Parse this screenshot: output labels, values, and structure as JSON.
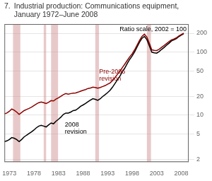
{
  "chart_data": {
    "type": "line",
    "log": "y",
    "title": [
      "7.",
      "Industrial production: Communications equipment,\nJanuary 1972–June 2008"
    ],
    "x": [
      1972.0,
      1972.5,
      1973.0,
      1973.5,
      1974.0,
      1974.5,
      1975.0,
      1975.5,
      1976.0,
      1976.5,
      1977.0,
      1977.5,
      1978.0,
      1978.5,
      1979.0,
      1979.5,
      1980.0,
      1980.5,
      1981.0,
      1981.5,
      1982.0,
      1982.5,
      1983.0,
      1983.5,
      1984.0,
      1984.5,
      1985.0,
      1985.5,
      1986.0,
      1986.5,
      1987.0,
      1987.5,
      1988.0,
      1988.5,
      1989.0,
      1989.5,
      1990.0,
      1990.5,
      1991.0,
      1991.5,
      1992.0,
      1992.5,
      1993.0,
      1993.5,
      1994.0,
      1994.5,
      1995.0,
      1995.5,
      1996.0,
      1996.5,
      1997.0,
      1997.5,
      1998.0,
      1998.5,
      1999.0,
      1999.5,
      2000.0,
      2000.5,
      2001.0,
      2001.5,
      2002.0,
      2002.5,
      2003.0,
      2003.5,
      2004.0,
      2004.5,
      2005.0,
      2005.5,
      2006.0,
      2006.5,
      2007.0,
      2007.5,
      2008.0,
      2008.5
    ],
    "series": [
      {
        "color": "#8b0000",
        "values": [
          10.5,
          10.8,
          11.5,
          12.5,
          12.0,
          11.2,
          10.3,
          11.0,
          11.8,
          12.3,
          12.8,
          13.4,
          14.2,
          15.0,
          15.8,
          16.2,
          15.8,
          15.3,
          16.0,
          17.0,
          16.8,
          18.0,
          18.8,
          20.0,
          21.2,
          22.0,
          21.5,
          22.0,
          22.3,
          22.5,
          23.2,
          24.0,
          24.8,
          25.5,
          26.5,
          27.0,
          27.8,
          27.5,
          26.8,
          27.5,
          28.5,
          29.5,
          31.0,
          32.5,
          35.5,
          39.5,
          44.5,
          49.5,
          57.0,
          64.5,
          74.0,
          84.5,
          94.0,
          109.0,
          129.0,
          154.0,
          178.0,
          193.0,
          173.0,
          138.0,
          109.0,
          107.0,
          106.5,
          111.5,
          119.5,
          127.5,
          137.0,
          147.0,
          157.0,
          161.5,
          169.0,
          181.0,
          191.0,
          200.0
        ]
      },
      {
        "color": "#000000",
        "values": [
          3.8,
          3.9,
          4.1,
          4.4,
          4.3,
          4.1,
          3.8,
          4.1,
          4.5,
          4.8,
          5.1,
          5.4,
          5.8,
          6.3,
          6.7,
          6.9,
          6.7,
          6.5,
          7.0,
          7.5,
          7.3,
          8.0,
          8.6,
          9.3,
          10.3,
          10.8,
          10.8,
          11.2,
          11.8,
          12.0,
          12.8,
          13.8,
          14.5,
          15.3,
          16.3,
          17.3,
          18.3,
          17.8,
          17.2,
          18.2,
          19.8,
          21.2,
          22.8,
          24.8,
          27.8,
          31.8,
          36.5,
          41.5,
          49.0,
          56.0,
          66.0,
          77.0,
          87.0,
          101.0,
          121.0,
          144.0,
          166.0,
          178.0,
          158.0,
          126.0,
          100.0,
          97.5,
          96.5,
          102.5,
          111.0,
          119.0,
          129.0,
          139.0,
          151.0,
          157.0,
          164.0,
          177.0,
          187.0,
          197.0
        ]
      }
    ],
    "xlim": [
      1972.0,
      2009.5
    ],
    "xticks": [
      1973,
      1978,
      1983,
      1988,
      1993,
      1998,
      2003,
      2008
    ],
    "ylim": [
      1.8,
      280
    ],
    "yticks": [
      2,
      5,
      10,
      20,
      50,
      100,
      200
    ],
    "grid": "y",
    "bands": [
      [
        1973.75,
        1975.25
      ],
      [
        1980.0,
        1980.5
      ],
      [
        1981.5,
        1982.92
      ],
      [
        1990.5,
        1991.25
      ],
      [
        2001.0,
        2001.83
      ]
    ],
    "annotations": [
      {
        "text": "Pre-2006\nrevision",
        "x": 1991.0,
        "y": 32,
        "color": "#8b0000"
      },
      {
        "text": "2008\nrevision",
        "x": 1984.0,
        "y": 8.2,
        "color": "#000000"
      },
      {
        "text": "Ratio scale, 2002 = 100",
        "x": 2009.2,
        "y": 245,
        "color": "#000000"
      }
    ]
  }
}
